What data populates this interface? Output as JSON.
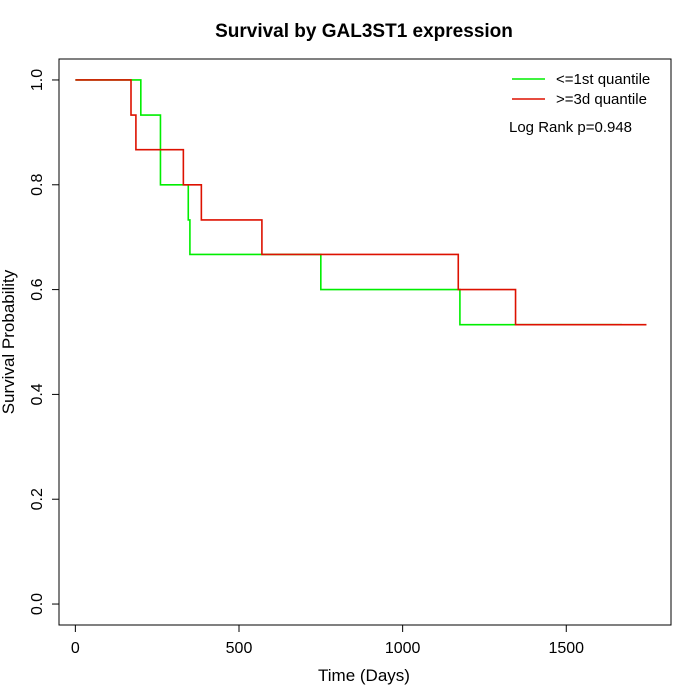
{
  "chart_data": {
    "type": "line",
    "title": "Survival by GAL3ST1 expression",
    "xlabel": "Time (Days)",
    "ylabel": "Survival Probability",
    "xlim": [
      -50,
      1820
    ],
    "ylim": [
      -0.04,
      1.04
    ],
    "xticks": [
      0,
      500,
      1000,
      1500
    ],
    "xtick_labels": [
      "0",
      "500",
      "1000",
      "1500"
    ],
    "yticks": [
      0.0,
      0.2,
      0.4,
      0.6,
      0.8,
      1.0
    ],
    "ytick_labels": [
      "0.0",
      "0.2",
      "0.4",
      "0.6",
      "0.8",
      "1.0"
    ],
    "grid": false,
    "legend_position": "top-right",
    "annotation": "Log Rank p=0.948",
    "series": [
      {
        "name": "<=1st quantile",
        "color": "#00ee00",
        "step": true,
        "x": [
          0,
          200,
          200,
          250,
          260,
          340,
          345,
          350,
          750,
          1175,
          1670
        ],
        "y": [
          1.0,
          1.0,
          0.933,
          0.933,
          0.8,
          0.8,
          0.733,
          0.667,
          0.6,
          0.533,
          0.533
        ]
      },
      {
        "name": ">=3d quantile",
        "color": "#dd1100",
        "step": true,
        "x": [
          0,
          170,
          185,
          330,
          385,
          570,
          1170,
          1345,
          1745
        ],
        "y": [
          1.0,
          0.933,
          0.867,
          0.8,
          0.733,
          0.667,
          0.6,
          0.533,
          0.533
        ]
      }
    ]
  }
}
